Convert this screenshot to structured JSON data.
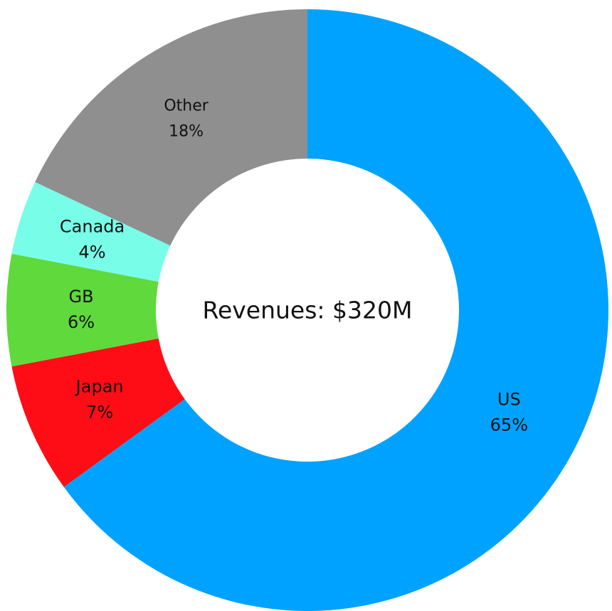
{
  "chart_data": {
    "type": "donut",
    "center_text": "Revenues: $320M",
    "categories": [
      "US",
      "Japan",
      "GB",
      "Canada",
      "Other"
    ],
    "values": [
      65,
      7,
      6,
      4,
      18
    ],
    "value_labels": [
      "65%",
      "7%",
      "6%",
      "4%",
      "18%"
    ],
    "colors": [
      "#00a2ff",
      "#ff0d17",
      "#5fd93b",
      "#78fde8",
      "#8f8f8f"
    ]
  }
}
